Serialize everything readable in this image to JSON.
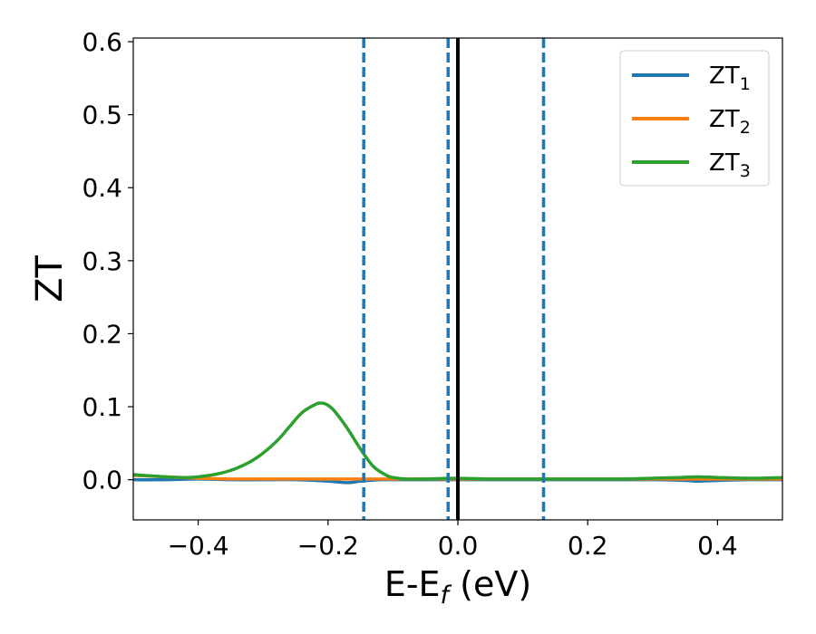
{
  "chart_data": {
    "type": "line",
    "xlabel_main": "E-E",
    "xlabel_sub": "f",
    "xlabel_unit": " (eV)",
    "ylabel": "ZT",
    "xlim": [
      -0.5,
      0.5
    ],
    "ylim": [
      -0.055,
      0.605
    ],
    "x_ticks": [
      -0.4,
      -0.2,
      0.0,
      0.2,
      0.4
    ],
    "x_tick_labels": [
      "−0.4",
      "−0.2",
      "0.0",
      "0.2",
      "0.4"
    ],
    "y_ticks": [
      0.0,
      0.1,
      0.2,
      0.3,
      0.4,
      0.5,
      0.6
    ],
    "y_tick_labels": [
      "0.0",
      "0.1",
      "0.2",
      "0.3",
      "0.4",
      "0.5",
      "0.6"
    ],
    "grid": false,
    "legend_position": "top-right",
    "vertical_lines": [
      {
        "x": -0.145,
        "style": "dashed",
        "color": "#1f77b4"
      },
      {
        "x": -0.015,
        "style": "dashed",
        "color": "#1f77b4"
      },
      {
        "x": 0.0,
        "style": "solid",
        "color": "#000000"
      },
      {
        "x": 0.132,
        "style": "dashed",
        "color": "#1f77b4"
      }
    ],
    "series": [
      {
        "name": "ZT",
        "subscript": "1",
        "color": "#1f77b4",
        "x": [
          -0.5,
          -0.45,
          -0.4,
          -0.35,
          -0.3,
          -0.25,
          -0.2,
          -0.17,
          -0.15,
          -0.12,
          -0.1,
          -0.05,
          0.0,
          0.05,
          0.1,
          0.15,
          0.2,
          0.25,
          0.3,
          0.35,
          0.37,
          0.4,
          0.45,
          0.5
        ],
        "values": [
          0.0,
          0.0,
          0.001,
          0.0,
          0.0,
          0.0,
          -0.002,
          -0.004,
          -0.002,
          0.0,
          0.0,
          0.0,
          0.0,
          0.0,
          0.0,
          0.0,
          0.0,
          0.0,
          0.0,
          -0.001,
          -0.002,
          -0.001,
          0.0,
          0.0
        ]
      },
      {
        "name": "ZT",
        "subscript": "2",
        "color": "#ff7f0e",
        "x": [
          -0.5,
          -0.45,
          -0.4,
          -0.35,
          -0.3,
          -0.25,
          -0.2,
          -0.15,
          -0.1,
          -0.05,
          0.0,
          0.05,
          0.1,
          0.15,
          0.2,
          0.25,
          0.3,
          0.35,
          0.4,
          0.45,
          0.5
        ],
        "values": [
          0.006,
          0.004,
          0.002,
          0.001,
          0.001,
          0.001,
          0.001,
          0.001,
          0.001,
          0.001,
          0.001,
          0.001,
          0.001,
          0.001,
          0.001,
          0.001,
          0.001,
          0.001,
          0.001,
          0.001,
          0.001
        ]
      },
      {
        "name": "ZT",
        "subscript": "3",
        "color": "#2ca02c",
        "x": [
          -0.5,
          -0.45,
          -0.42,
          -0.4,
          -0.37,
          -0.34,
          -0.31,
          -0.28,
          -0.26,
          -0.24,
          -0.22,
          -0.21,
          -0.2,
          -0.19,
          -0.17,
          -0.15,
          -0.13,
          -0.11,
          -0.1,
          -0.08,
          -0.05,
          0.0,
          0.05,
          0.1,
          0.15,
          0.2,
          0.25,
          0.3,
          0.34,
          0.37,
          0.4,
          0.45,
          0.5
        ],
        "values": [
          0.007,
          0.004,
          0.003,
          0.004,
          0.008,
          0.016,
          0.03,
          0.052,
          0.072,
          0.092,
          0.103,
          0.105,
          0.102,
          0.094,
          0.07,
          0.042,
          0.018,
          0.006,
          0.003,
          0.001,
          0.001,
          0.002,
          0.001,
          0.001,
          0.001,
          0.001,
          0.001,
          0.002,
          0.003,
          0.004,
          0.003,
          0.002,
          0.003
        ]
      }
    ]
  }
}
